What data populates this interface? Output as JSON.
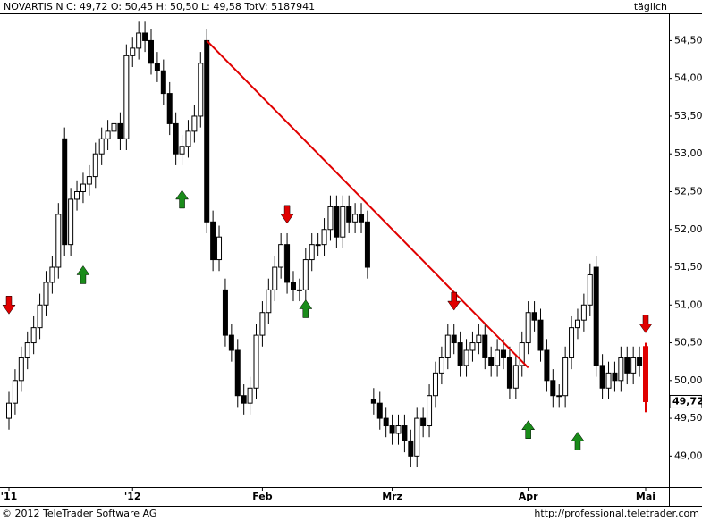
{
  "chart_data": {
    "type": "candlestick",
    "title": "NOVARTIS N C: 49,72 O: 50,45 H: 50,50 L: 49,58 TotV: 5187941",
    "period": "täglich",
    "footer_left": "© 2012 TeleTrader Software AG",
    "footer_right": "http://professional.teletrader.com",
    "categories": [
      "'11",
      null,
      null,
      null,
      null,
      null,
      null,
      null,
      null,
      null,
      null,
      null,
      null,
      null,
      null,
      null,
      null,
      null,
      null,
      null,
      "'12",
      null,
      null,
      null,
      null,
      null,
      null,
      null,
      null,
      null,
      null,
      null,
      null,
      null,
      null,
      null,
      null,
      null,
      null,
      null,
      null,
      "Feb",
      null,
      null,
      null,
      null,
      null,
      null,
      null,
      null,
      null,
      null,
      null,
      null,
      null,
      null,
      null,
      null,
      null,
      null,
      null,
      null,
      "Mrz",
      null,
      null,
      null,
      null,
      null,
      null,
      null,
      null,
      null,
      null,
      null,
      null,
      null,
      null,
      null,
      null,
      null,
      null,
      null,
      null,
      null,
      "Apr",
      null,
      null,
      null,
      null,
      null,
      null,
      null,
      null,
      null,
      null,
      null,
      null,
      null,
      null,
      null,
      null,
      null,
      null,
      "Mai"
    ],
    "open": [
      49.5,
      49.7,
      50.0,
      50.3,
      50.5,
      50.7,
      51.0,
      51.3,
      51.5,
      53.2,
      51.8,
      52.4,
      52.5,
      52.6,
      52.7,
      53.0,
      53.2,
      53.3,
      53.4,
      53.2,
      54.3,
      54.4,
      54.6,
      54.5,
      54.2,
      54.1,
      53.8,
      53.4,
      53.0,
      53.1,
      53.3,
      53.5,
      54.5,
      52.1,
      51.6,
      51.2,
      50.6,
      50.4,
      49.8,
      49.7,
      49.9,
      50.6,
      50.9,
      51.2,
      51.5,
      51.8,
      51.3,
      51.2,
      51.2,
      51.6,
      51.8,
      51.8,
      52.0,
      52.3,
      51.9,
      52.3,
      52.1,
      52.2,
      52.1,
      49.75,
      49.7,
      49.5,
      49.4,
      49.3,
      49.4,
      49.2,
      49.0,
      49.5,
      49.4,
      49.8,
      50.1,
      50.3,
      50.6,
      50.5,
      50.2,
      50.4,
      50.5,
      50.6,
      50.3,
      50.2,
      50.4,
      50.3,
      49.9,
      50.2,
      50.5,
      50.9,
      50.8,
      50.4,
      50.0,
      49.8,
      49.8,
      50.3,
      50.7,
      50.8,
      51.0,
      51.5,
      50.2,
      49.9,
      50.1,
      50.0,
      50.3,
      50.1,
      50.3,
      50.45
    ],
    "high": [
      49.85,
      50.15,
      50.45,
      50.65,
      50.85,
      51.15,
      51.45,
      51.65,
      52.35,
      53.35,
      52.55,
      52.65,
      52.75,
      52.85,
      53.15,
      53.35,
      53.45,
      53.55,
      53.55,
      54.45,
      54.55,
      54.75,
      54.75,
      54.65,
      54.35,
      54.25,
      53.95,
      53.55,
      53.25,
      53.45,
      53.65,
      54.35,
      54.65,
      52.25,
      52.05,
      51.35,
      50.75,
      50.55,
      49.95,
      50.05,
      50.75,
      51.05,
      51.35,
      51.65,
      51.95,
      51.95,
      51.45,
      51.35,
      51.75,
      51.95,
      51.95,
      52.15,
      52.45,
      52.45,
      52.45,
      52.45,
      52.35,
      52.35,
      52.25,
      49.9,
      49.85,
      49.65,
      49.55,
      49.55,
      49.55,
      49.35,
      49.65,
      49.65,
      49.95,
      50.25,
      50.45,
      50.75,
      50.75,
      50.65,
      50.55,
      50.65,
      50.75,
      50.75,
      50.45,
      50.55,
      50.55,
      50.45,
      50.35,
      50.65,
      51.05,
      51.05,
      50.95,
      50.55,
      50.15,
      49.95,
      50.45,
      50.85,
      50.95,
      51.15,
      51.55,
      51.65,
      50.35,
      50.25,
      50.25,
      50.45,
      50.45,
      50.45,
      50.45,
      50.5
    ],
    "low": [
      49.35,
      49.55,
      49.85,
      50.15,
      50.35,
      50.55,
      50.85,
      51.15,
      51.35,
      51.65,
      51.65,
      52.25,
      52.35,
      52.45,
      52.55,
      52.85,
      53.05,
      53.15,
      53.05,
      53.05,
      54.15,
      54.25,
      54.35,
      54.05,
      53.95,
      53.65,
      53.25,
      52.85,
      52.85,
      52.95,
      53.15,
      53.35,
      51.95,
      51.45,
      51.45,
      50.45,
      50.25,
      49.65,
      49.55,
      49.55,
      49.75,
      50.45,
      50.75,
      51.05,
      51.35,
      51.15,
      51.05,
      51.05,
      51.05,
      51.45,
      51.65,
      51.65,
      51.85,
      51.75,
      51.75,
      51.95,
      51.95,
      51.95,
      51.35,
      49.55,
      49.35,
      49.25,
      49.15,
      49.15,
      49.05,
      48.85,
      48.85,
      49.25,
      49.25,
      49.65,
      49.95,
      50.15,
      50.35,
      50.05,
      50.05,
      50.25,
      50.35,
      50.15,
      50.05,
      50.05,
      50.15,
      49.75,
      49.75,
      50.05,
      50.35,
      50.65,
      50.25,
      49.85,
      49.65,
      49.65,
      49.65,
      50.15,
      50.55,
      50.65,
      50.85,
      50.05,
      49.75,
      49.75,
      49.85,
      49.85,
      49.95,
      49.95,
      50.05,
      49.58
    ],
    "close": [
      49.7,
      50.0,
      50.3,
      50.5,
      50.7,
      51.0,
      51.3,
      51.5,
      52.2,
      51.8,
      52.4,
      52.5,
      52.6,
      52.7,
      53.0,
      53.2,
      53.3,
      53.4,
      53.2,
      54.3,
      54.4,
      54.6,
      54.5,
      54.2,
      54.1,
      53.8,
      53.4,
      53.0,
      53.1,
      53.3,
      53.5,
      54.2,
      52.1,
      51.6,
      51.9,
      50.6,
      50.4,
      49.8,
      49.7,
      49.9,
      50.6,
      50.9,
      51.2,
      51.5,
      51.8,
      51.3,
      51.2,
      51.2,
      51.6,
      51.8,
      51.8,
      52.0,
      52.3,
      51.9,
      52.3,
      52.1,
      52.2,
      52.1,
      51.5,
      49.7,
      49.5,
      49.4,
      49.3,
      49.4,
      49.2,
      49.0,
      49.5,
      49.4,
      49.8,
      50.1,
      50.3,
      50.6,
      50.5,
      50.2,
      50.4,
      50.5,
      50.6,
      50.3,
      50.2,
      50.4,
      50.3,
      49.9,
      50.2,
      50.5,
      50.9,
      50.8,
      50.4,
      50.0,
      49.8,
      49.8,
      50.3,
      50.7,
      50.8,
      51.0,
      51.4,
      50.2,
      49.9,
      50.1,
      50.0,
      50.3,
      50.1,
      50.3,
      50.2,
      49.72
    ],
    "up_color": "#ffffff",
    "down_color": "#000000",
    "last_color": "#e00000",
    "last_price": {
      "value": 49.72,
      "label": "49,72"
    },
    "trendline": {
      "x": [
        32,
        84
      ],
      "y": [
        54.5,
        50.17
      ],
      "color": "#e00000"
    },
    "signals": {
      "down": {
        "color": "#e00000",
        "at": [
          0,
          45,
          72,
          103
        ],
        "y": [
          51.0,
          52.2,
          51.05,
          50.75
        ]
      },
      "up": {
        "color": "#1a8c1a",
        "at": [
          12,
          28,
          48,
          84,
          92
        ],
        "y": [
          51.4,
          52.4,
          50.95,
          49.35,
          49.2
        ]
      }
    },
    "ylim": [
      48.59,
      54.86
    ],
    "yticks": [
      {
        "value": 49,
        "label": "49,00"
      },
      {
        "value": 49.5,
        "label": "49,50"
      },
      {
        "value": 50,
        "label": "50,00"
      },
      {
        "value": 50.5,
        "label": "50,50"
      },
      {
        "value": 51,
        "label": "51,00"
      },
      {
        "value": 51.5,
        "label": "51,50"
      },
      {
        "value": 52,
        "label": "52,00"
      },
      {
        "value": 52.5,
        "label": "52,50"
      },
      {
        "value": 53,
        "label": "53,00"
      },
      {
        "value": 53.5,
        "label": "53,50"
      },
      {
        "value": 54,
        "label": "54,00"
      },
      {
        "value": 54.5,
        "label": "54,50"
      }
    ],
    "grid": false
  }
}
